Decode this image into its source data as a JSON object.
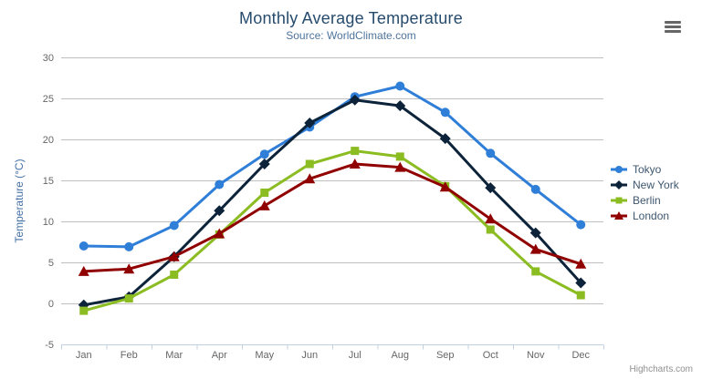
{
  "header": {
    "title": "Monthly Average Temperature",
    "subtitle": "Source: WorldClimate.com"
  },
  "credit": "Highcharts.com",
  "colors": {
    "title": "#274b6d",
    "subtitle": "#4d759e",
    "axis_title": "#4572a7",
    "axis_labels": "#666666",
    "gridline": "#c0c0c0",
    "axis_line": "#c0d0e0",
    "legend_text": "#3e576f",
    "credit": "#909090",
    "menu_icon": "#666666"
  },
  "chart_data": {
    "type": "line",
    "title": "Monthly Average Temperature",
    "subtitle": "Source: WorldClimate.com",
    "categories": [
      "Jan",
      "Feb",
      "Mar",
      "Apr",
      "May",
      "Jun",
      "Jul",
      "Aug",
      "Sep",
      "Oct",
      "Nov",
      "Dec"
    ],
    "xlabel": "",
    "ylabel": "Temperature (°C)",
    "ylim": [
      -5,
      30
    ],
    "ytick_interval": 5,
    "grid": true,
    "legend_position": "right",
    "series": [
      {
        "name": "Tokyo",
        "color": "#2f7ed8",
        "marker": "circle",
        "values": [
          7.0,
          6.9,
          9.5,
          14.5,
          18.2,
          21.5,
          25.2,
          26.5,
          23.3,
          18.3,
          13.9,
          9.6
        ]
      },
      {
        "name": "New York",
        "color": "#0d233a",
        "marker": "diamond",
        "values": [
          -0.2,
          0.8,
          5.7,
          11.3,
          17.0,
          22.0,
          24.8,
          24.1,
          20.1,
          14.1,
          8.6,
          2.5
        ]
      },
      {
        "name": "Berlin",
        "color": "#8bbc21",
        "marker": "square",
        "values": [
          -0.9,
          0.6,
          3.5,
          8.4,
          13.5,
          17.0,
          18.6,
          17.9,
          14.3,
          9.0,
          3.9,
          1.0
        ]
      },
      {
        "name": "London",
        "color": "#910000",
        "marker": "triangle",
        "values": [
          3.9,
          4.2,
          5.7,
          8.5,
          11.9,
          15.2,
          17.0,
          16.6,
          14.2,
          10.3,
          6.6,
          4.8
        ]
      }
    ]
  }
}
